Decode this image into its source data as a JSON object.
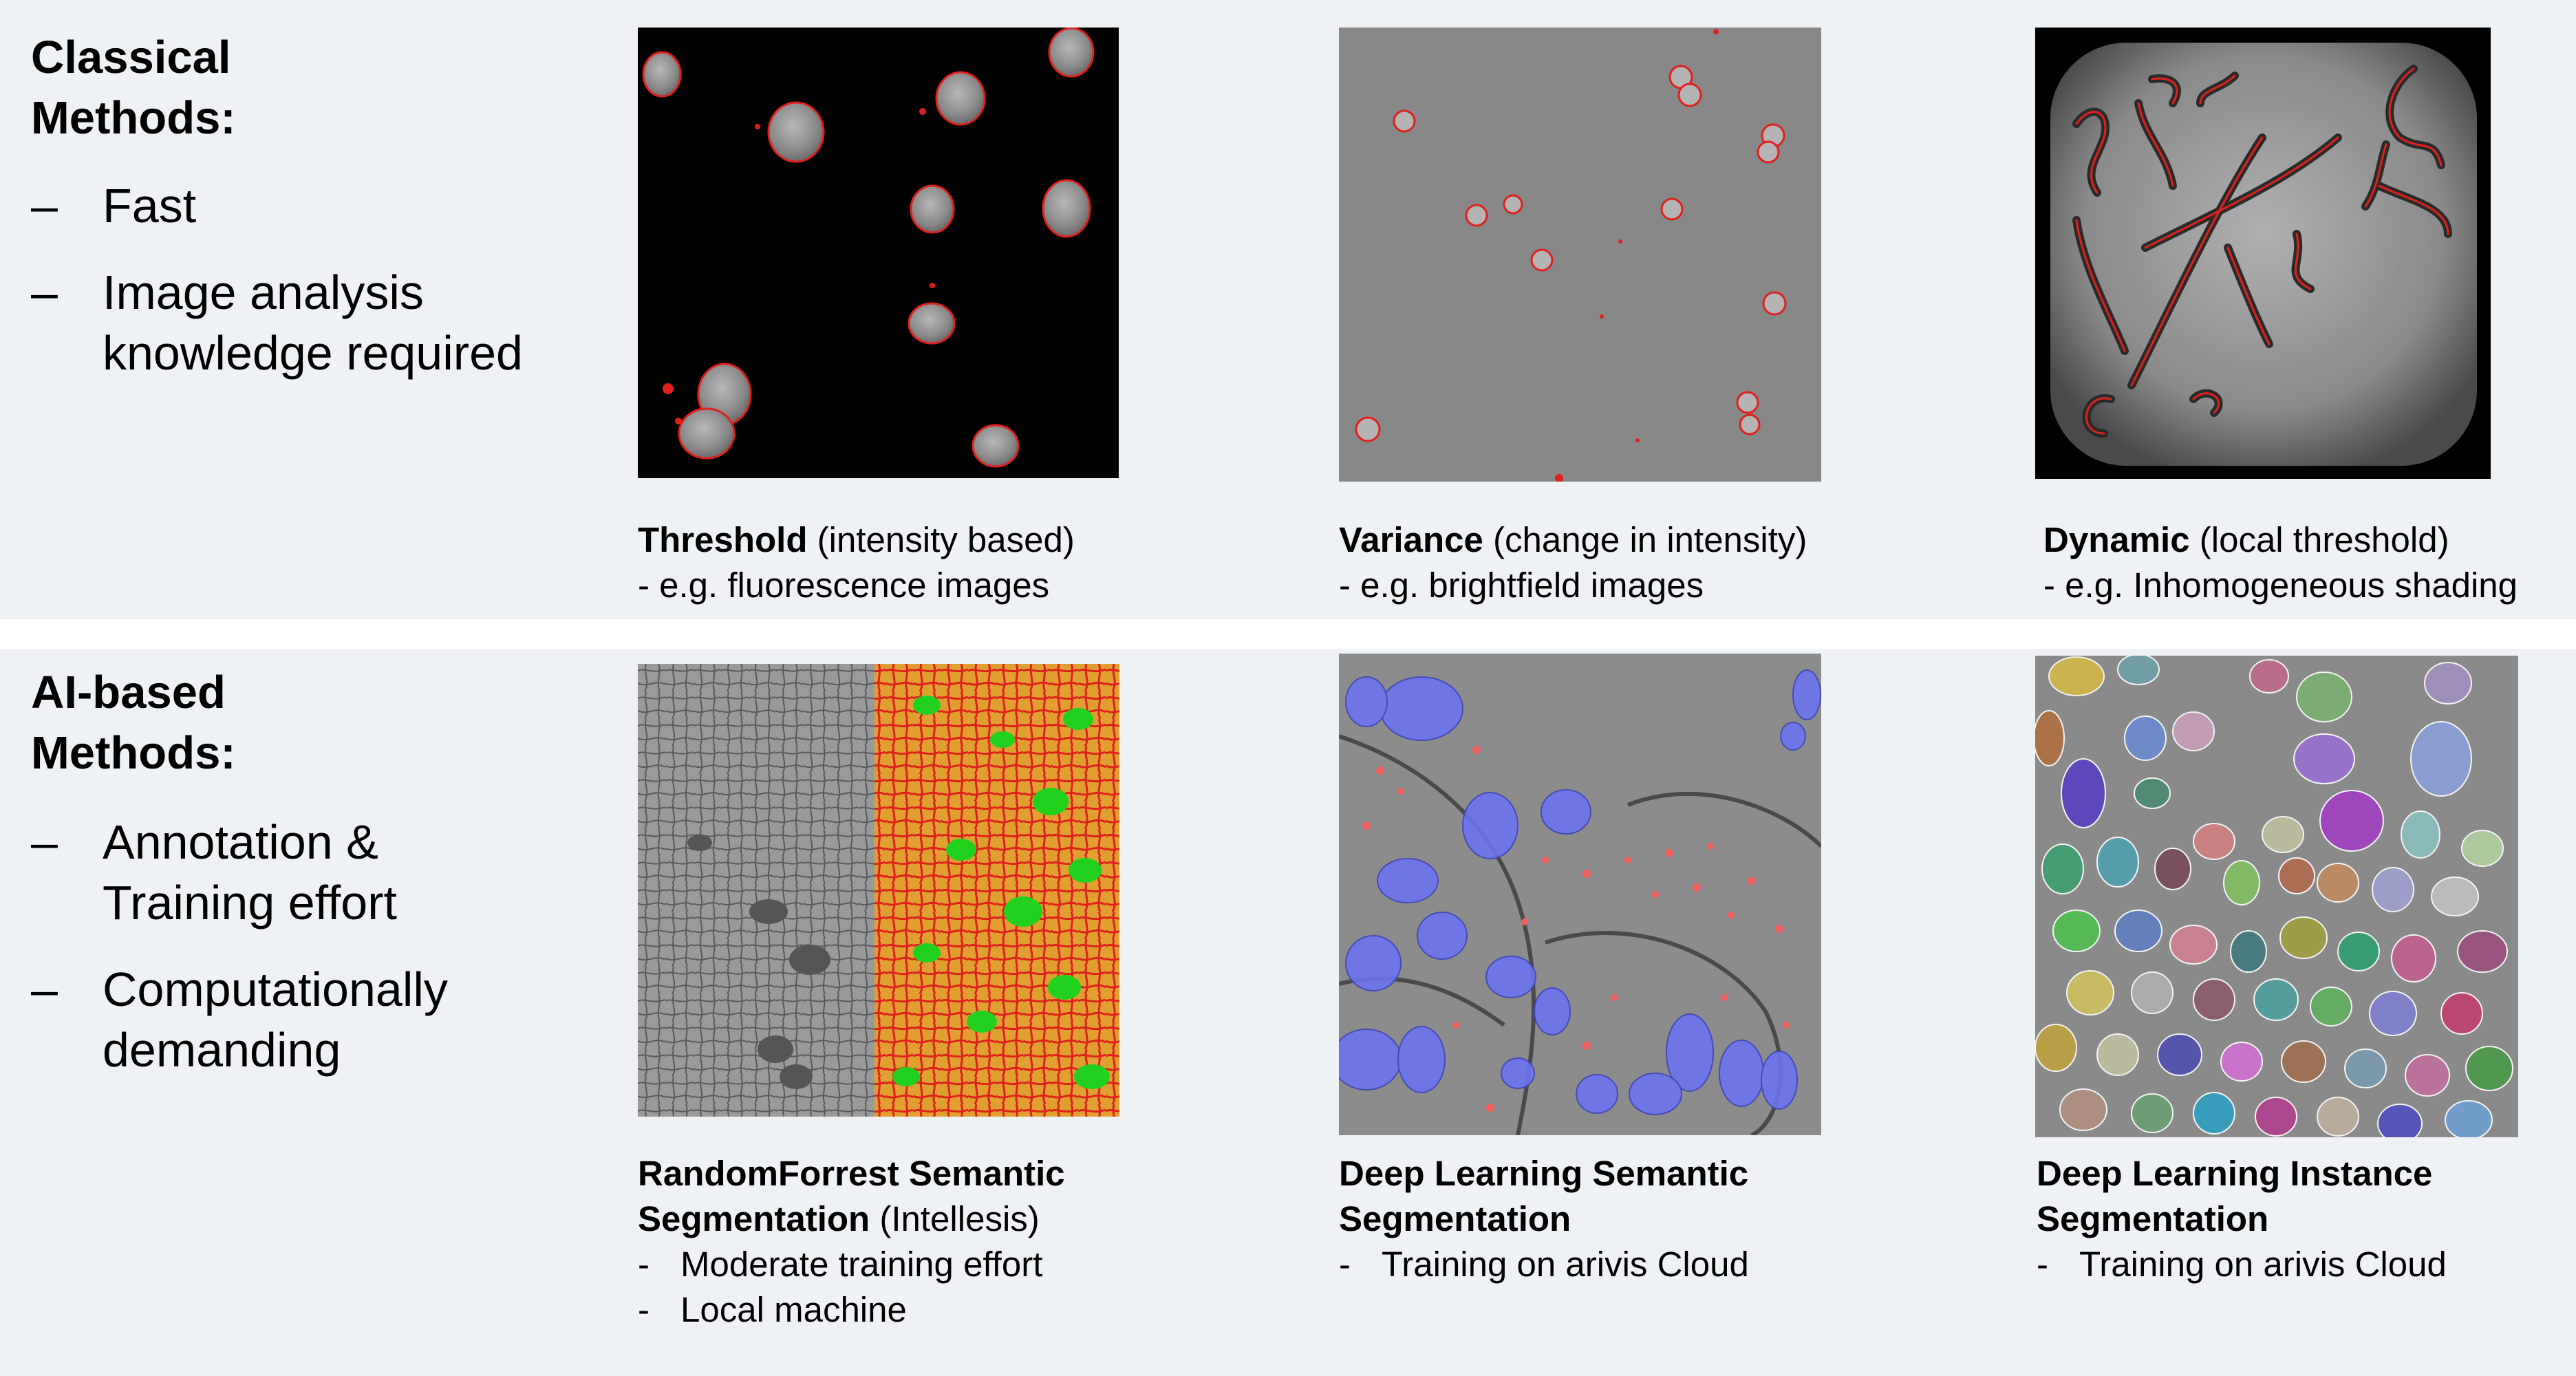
{
  "classical": {
    "title_line1": "Classical",
    "title_line2": "Methods:",
    "bullets": [
      {
        "dash": "–",
        "line1": "Fast",
        "line2": ""
      },
      {
        "dash": "–",
        "line1": "Image analysis",
        "line2": "knowledge required"
      }
    ],
    "panels": [
      {
        "bold": "Threshold",
        "rest": " (intensity based)",
        "line2": "- e.g. fluorescence images"
      },
      {
        "bold": "Variance",
        "rest": " (change in intensity)",
        "line2": "- e.g. brightfield images"
      },
      {
        "bold": "Dynamic",
        "rest": " (local threshold)",
        "line2": "- e.g. Inhomogeneous shading"
      }
    ]
  },
  "ai": {
    "title_line1": "AI-based",
    "title_line2": "Methods:",
    "bullets": [
      {
        "dash": "–",
        "line1": "Annotation &",
        "line2": "Training effort"
      },
      {
        "dash": "–",
        "line1": "Computationally",
        "line2": "demanding"
      }
    ],
    "panels": [
      {
        "bold1": "RandomForrest Semantic",
        "bold2": "Segmentation",
        "rest2": " (Intellesis)",
        "subs": [
          {
            "dash": "-",
            "text": "Moderate training effort"
          },
          {
            "dash": "-",
            "text": "Local machine"
          }
        ]
      },
      {
        "bold1": "Deep Learning Semantic",
        "bold2": "Segmentation",
        "rest2": "",
        "subs": [
          {
            "dash": "-",
            "text": "Training on arivis Cloud"
          }
        ]
      },
      {
        "bold1": "Deep Learning Instance",
        "bold2": "Segmentation",
        "rest2": "",
        "subs": [
          {
            "dash": "-",
            "text": "Training on arivis Cloud"
          }
        ]
      }
    ]
  },
  "colors": {
    "band": "#eef2f5",
    "outline_red": "#e0201c",
    "mito_blue": "#6b74f0",
    "rf_green": "#22d11e",
    "rf_orange": "#e0a030"
  }
}
